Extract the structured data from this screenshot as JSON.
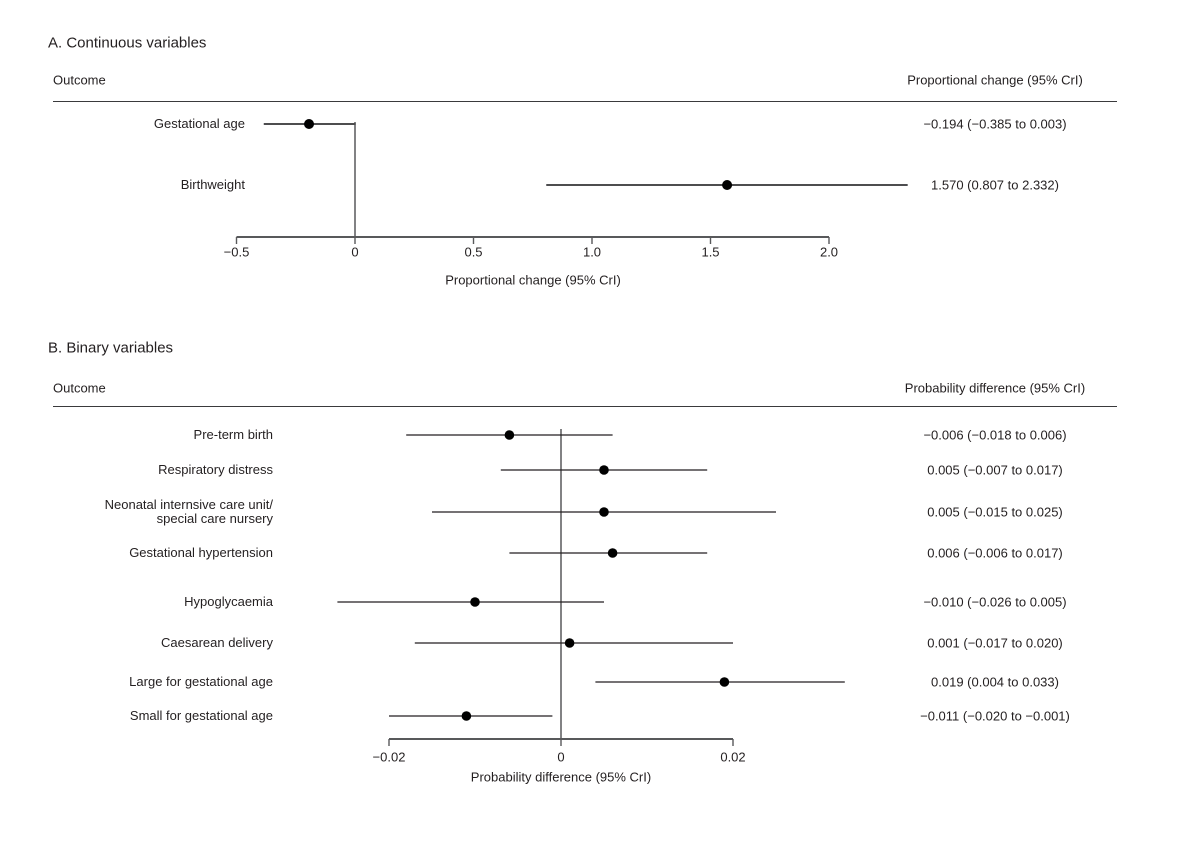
{
  "colors": {
    "text": "#231f20",
    "axis": "#58595b",
    "marker": "#000000",
    "ci_line_panel_a": "#4d4d4f",
    "ci_line_panel_b": "#231f20",
    "zero_line": "#4d4d4f"
  },
  "chart_data": [
    {
      "type": "forest",
      "panel": "A. Continuous variables",
      "outcome_header": "Outcome",
      "value_header": "Proportional change (95% CrI)",
      "xlabel": "Proportional change (95% CrI)",
      "xlim": [
        -0.5,
        2.0
      ],
      "x_ticks": [
        -0.5,
        0,
        0.5,
        1.0,
        1.5,
        2.0
      ],
      "x_tick_labels": [
        "−0.5",
        "0",
        "0.5",
        "1.0",
        "1.5",
        "2.0"
      ],
      "zero_line": 0,
      "grid": "off",
      "rows": [
        {
          "outcome": "Gestational age",
          "estimate": -0.194,
          "ci_lower": -0.385,
          "ci_upper": 0.003,
          "value_text": "−0.194 (−0.385 to 0.003)"
        },
        {
          "outcome": "Birthweight",
          "estimate": 1.57,
          "ci_lower": 0.807,
          "ci_upper": 2.332,
          "value_text": "1.570 (0.807 to 2.332)"
        }
      ]
    },
    {
      "type": "forest",
      "panel": "B. Binary variables",
      "outcome_header": "Outcome",
      "value_header": "Probability difference  (95% CrI)",
      "xlabel": "Probability difference (95% CrI)",
      "xlim": [
        -0.02,
        0.02
      ],
      "x_ticks": [
        -0.02,
        0,
        0.02
      ],
      "x_tick_labels": [
        "−0.02",
        "0",
        "0.02"
      ],
      "zero_line": 0,
      "grid": "off",
      "rows": [
        {
          "outcome": "Pre-term birth",
          "estimate": -0.006,
          "ci_lower": -0.018,
          "ci_upper": 0.006,
          "value_text": "−0.006 (−0.018 to 0.006)"
        },
        {
          "outcome": "Respiratory distress",
          "estimate": 0.005,
          "ci_lower": -0.007,
          "ci_upper": 0.017,
          "value_text": "0.005 (−0.007 to 0.017)"
        },
        {
          "outcome": "Neonatal internsive care unit/\nspecial care nursery",
          "estimate": 0.005,
          "ci_lower": -0.015,
          "ci_upper": 0.025,
          "value_text": "0.005 (−0.015 to 0.025)"
        },
        {
          "outcome": "Gestational hypertension",
          "estimate": 0.006,
          "ci_lower": -0.006,
          "ci_upper": 0.017,
          "value_text": "0.006 (−0.006 to 0.017)"
        },
        {
          "outcome": "Hypoglycaemia",
          "estimate": -0.01,
          "ci_lower": -0.026,
          "ci_upper": 0.005,
          "value_text": "−0.010 (−0.026 to 0.005)"
        },
        {
          "outcome": "Caesarean delivery",
          "estimate": 0.001,
          "ci_lower": -0.017,
          "ci_upper": 0.02,
          "value_text": "0.001 (−0.017 to 0.020)"
        },
        {
          "outcome": "Large for gestational age",
          "estimate": 0.019,
          "ci_lower": 0.004,
          "ci_upper": 0.033,
          "value_text": "0.019 (0.004 to 0.033)"
        },
        {
          "outcome": "Small for gestational age",
          "estimate": -0.011,
          "ci_lower": -0.02,
          "ci_upper": -0.001,
          "value_text": "−0.011 (−0.020 to −0.001)"
        }
      ]
    }
  ]
}
